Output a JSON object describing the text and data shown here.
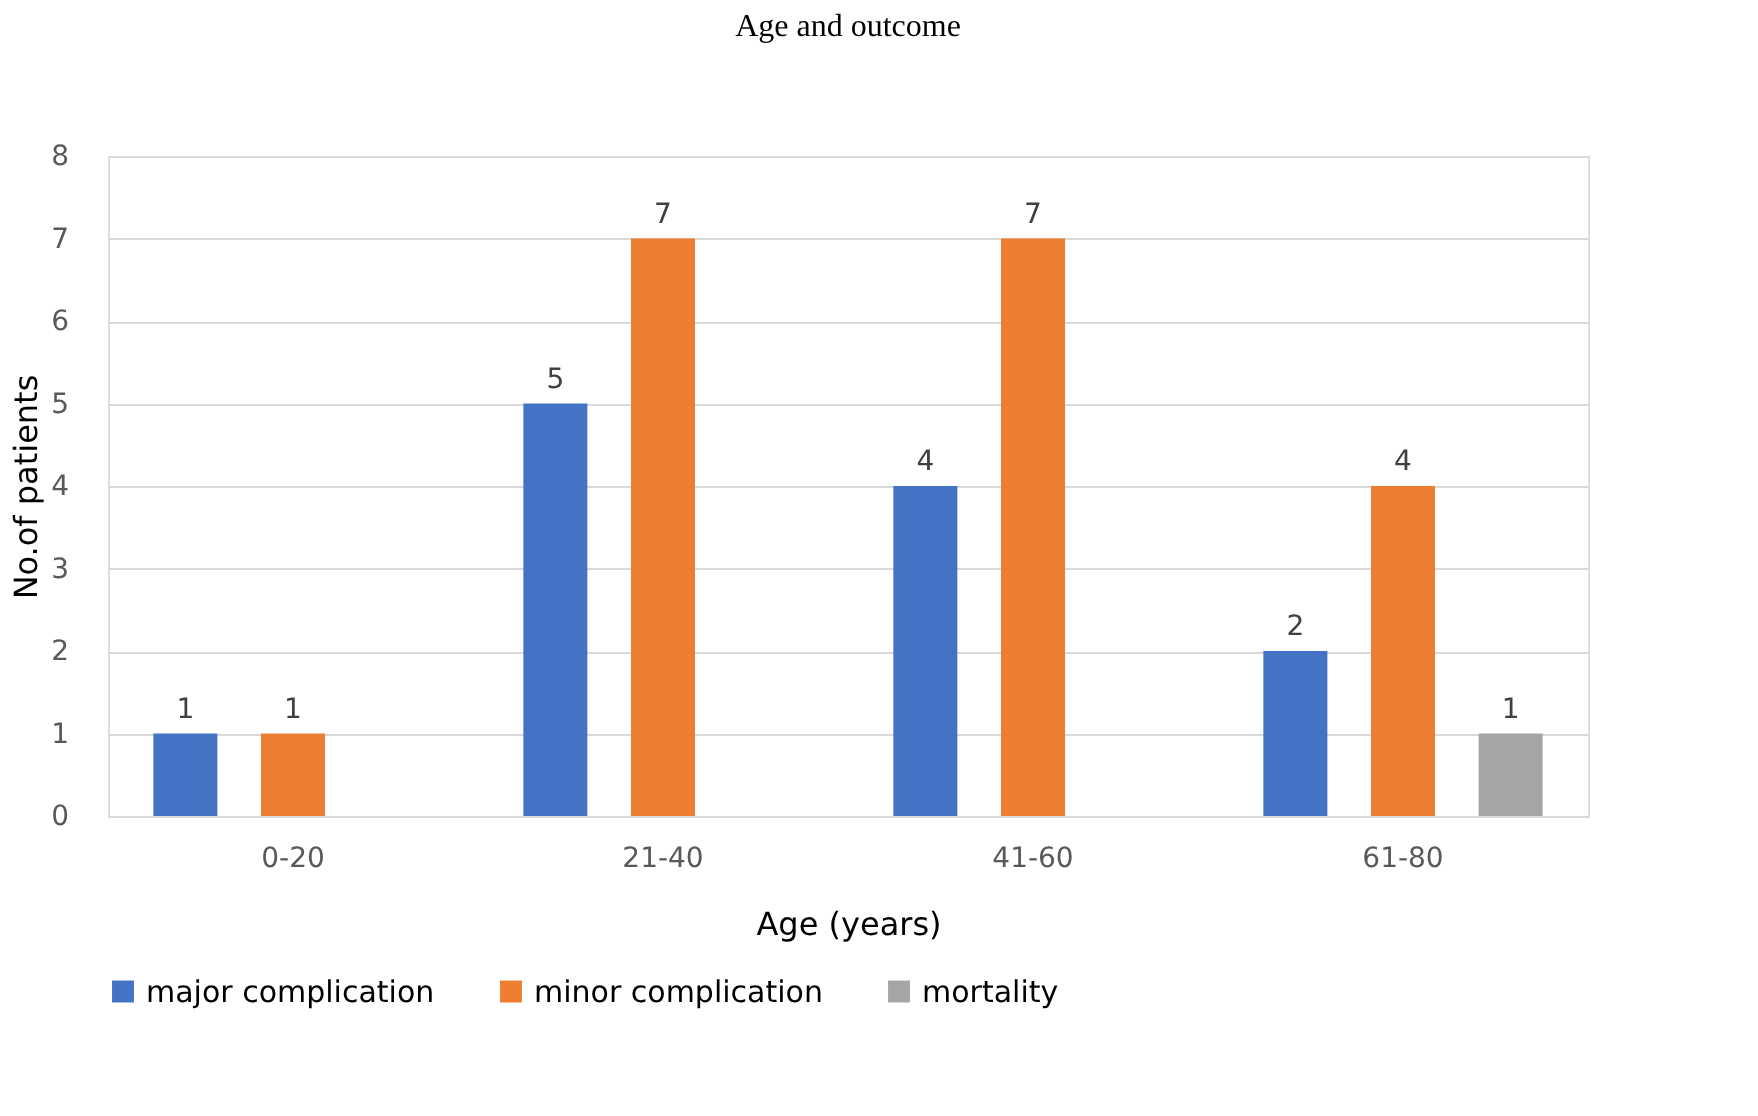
{
  "chart_data": {
    "type": "bar",
    "title": "Age and outcome",
    "xlabel": "Age (years)",
    "ylabel": "No.of patients",
    "categories": [
      "0-20",
      "21-40",
      "41-60",
      "61-80"
    ],
    "series": [
      {
        "name": "major complication",
        "color": "#4472c4",
        "values": [
          1,
          5,
          4,
          2
        ]
      },
      {
        "name": "minor complication",
        "color": "#ed7d31",
        "values": [
          1,
          7,
          7,
          4
        ]
      },
      {
        "name": "mortality",
        "color": "#a5a5a5",
        "values": [
          null,
          null,
          null,
          1
        ]
      }
    ],
    "ylim": [
      0,
      8
    ],
    "yticks": [
      0,
      1,
      2,
      3,
      4,
      5,
      6,
      7,
      8
    ],
    "grid": "y",
    "legend": "bottom",
    "data_labels": true
  }
}
